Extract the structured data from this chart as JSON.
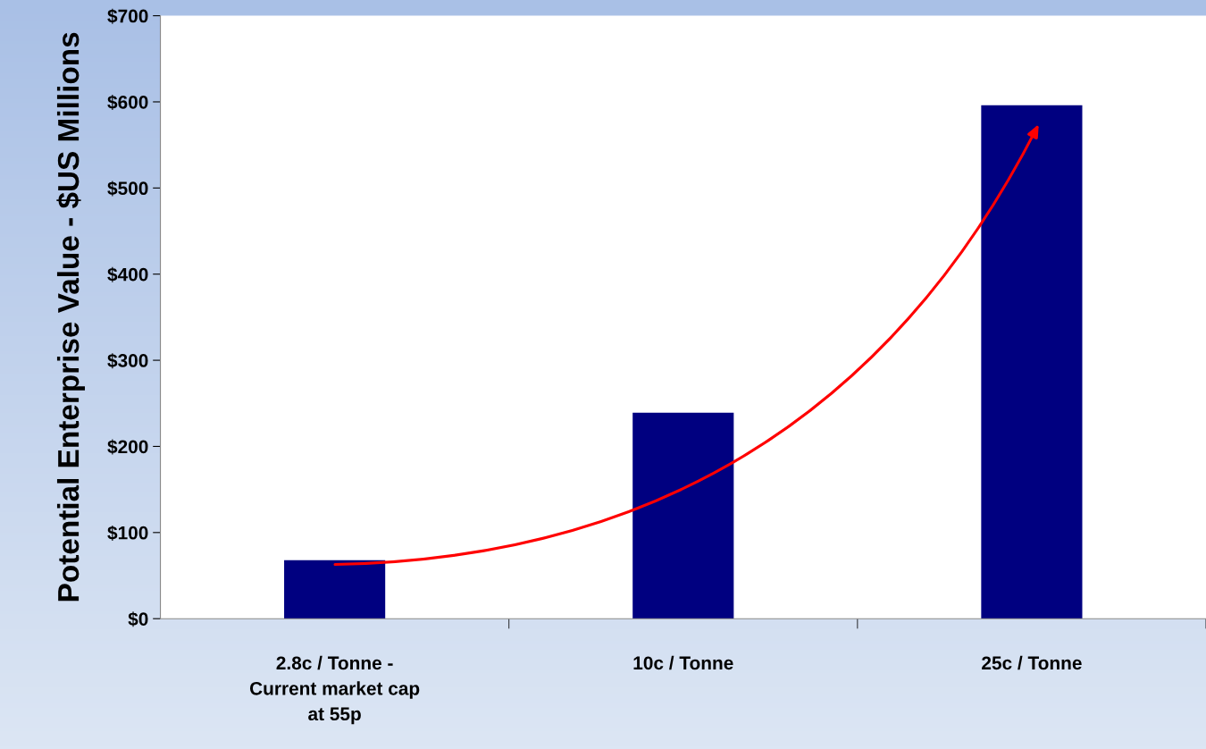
{
  "chart_data": {
    "type": "bar",
    "ylabel": "Potential Enterprise Value - $US Millions",
    "categories": [
      "2.8c / Tonne -\nCurrent market cap\nat 55p",
      "10c / Tonne",
      "25c / Tonne"
    ],
    "values": [
      68,
      239,
      596
    ],
    "color": "#000080",
    "ylim": [
      0,
      700
    ],
    "yticks": [
      {
        "value": 0,
        "label": "$0"
      },
      {
        "value": 100,
        "label": "$100"
      },
      {
        "value": 200,
        "label": "$200"
      },
      {
        "value": 300,
        "label": "$300"
      },
      {
        "value": 400,
        "label": "$400"
      },
      {
        "value": 500,
        "label": "$500"
      },
      {
        "value": 600,
        "label": "$600"
      },
      {
        "value": 700,
        "label": "$700"
      }
    ],
    "grid": false
  }
}
